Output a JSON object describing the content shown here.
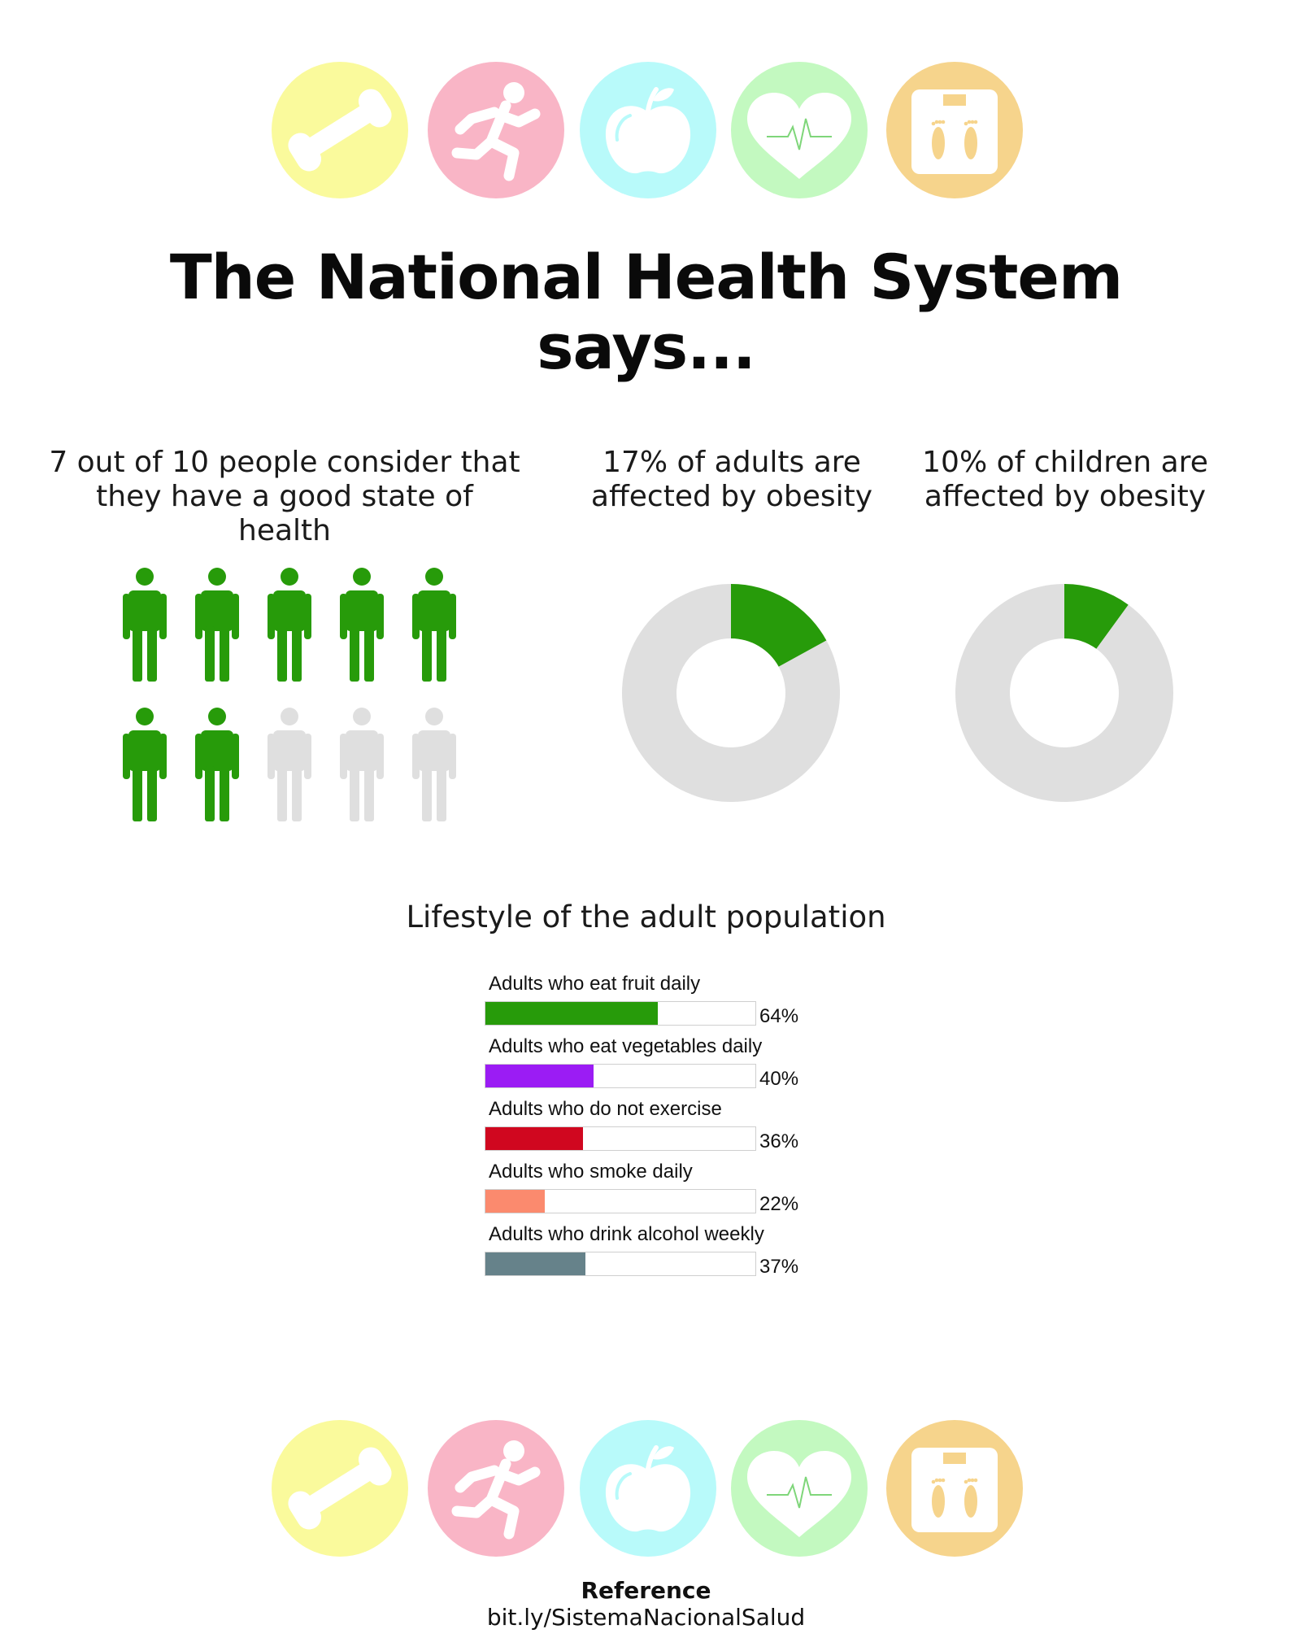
{
  "header_icons": [
    {
      "name": "dumbbell-icon",
      "color": "#fafa9c"
    },
    {
      "name": "runner-icon",
      "color": "#f9b5c6"
    },
    {
      "name": "apple-icon",
      "color": "#b8fafa"
    },
    {
      "name": "heart-pulse-icon",
      "color": "#c3f9c0"
    },
    {
      "name": "scale-icon",
      "color": "#f6d48c"
    }
  ],
  "title": {
    "line1": "The National Health System",
    "line2": "says..."
  },
  "stats": {
    "people": {
      "text_line1": "7 out of 10 people consider that",
      "text_line2": "they have a good state of health",
      "highlighted": 7,
      "total": 10,
      "highlight_color": "#279b0a",
      "base_color": "#dfdfdf"
    },
    "adults_obesity": {
      "text_line1": "17% of adults are",
      "text_line2": "affected by obesity",
      "percent": 17
    },
    "children_obesity": {
      "text_line1": "10% of children are",
      "text_line2": "affected by obesity",
      "percent": 10
    }
  },
  "lifestyle_title": "Lifestyle of the adult population",
  "chart_data": [
    {
      "type": "pie",
      "title": "17% of adults are affected by obesity",
      "values": [
        17,
        83
      ],
      "colors": [
        "#279b0a",
        "#dfdfdf"
      ]
    },
    {
      "type": "pie",
      "title": "10% of children are affected by obesity",
      "values": [
        10,
        90
      ],
      "colors": [
        "#279b0a",
        "#dfdfdf"
      ]
    },
    {
      "type": "bar",
      "title": "Lifestyle of the adult population",
      "categories": [
        "Adults who eat fruit daily",
        "Adults who eat vegetables daily",
        "Adults who do not exercise",
        "Adults who smoke daily",
        "Adults who drink alcohol weekly"
      ],
      "values": [
        64,
        40,
        36,
        22,
        37
      ],
      "value_labels": [
        "64%",
        "40%",
        "36%",
        "22%",
        "37%"
      ],
      "colors": [
        "#279b0a",
        "#9b1cf4",
        "#d0071f",
        "#fb8a6e",
        "#66828a"
      ],
      "ylim": [
        0,
        100
      ]
    }
  ],
  "reference": {
    "title": "Reference",
    "link": "bit.ly/SistemaNacionalSalud"
  }
}
